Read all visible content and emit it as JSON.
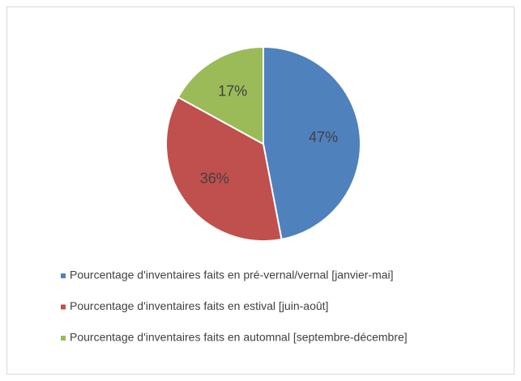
{
  "chart_data": {
    "type": "pie",
    "categories": [
      "Pourcentage d'inventaires faits en pré-vernal/vernal [janvier-mai]",
      "Pourcentage d'inventaires faits en estival [juin-août]",
      "Pourcentage d'inventaires faits en automnal [septembre-décembre]"
    ],
    "values": [
      47,
      36,
      17
    ],
    "value_labels": [
      "47%",
      "36%",
      "17%"
    ],
    "colors": [
      "#4f81bd",
      "#c0504d",
      "#9bbb59"
    ],
    "legend": "bottom"
  }
}
